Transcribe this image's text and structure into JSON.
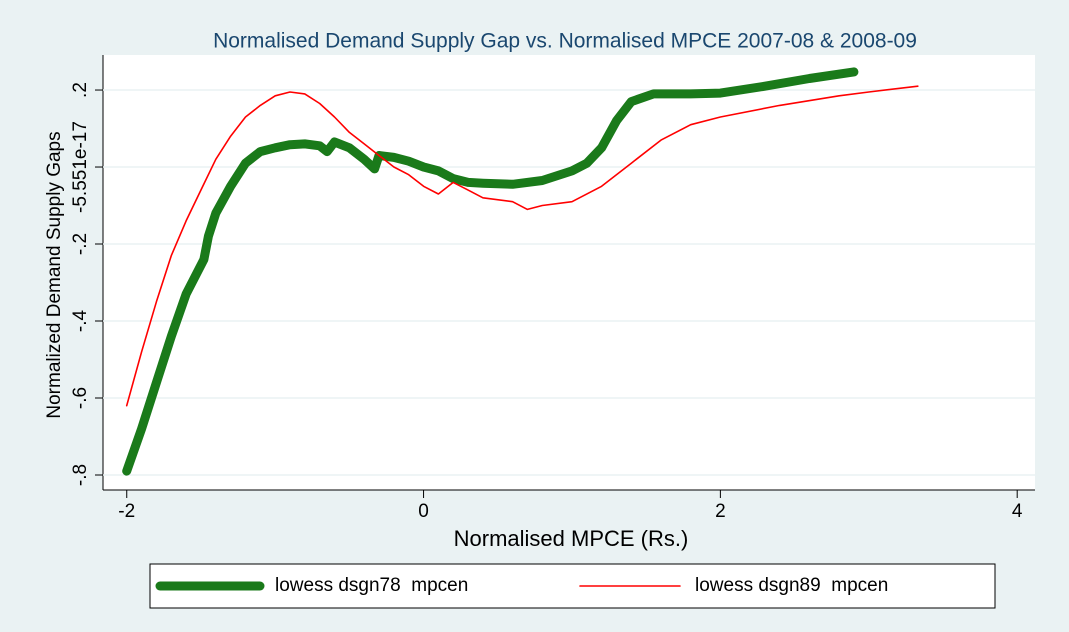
{
  "chart_data": {
    "type": "line",
    "title": "Normalised Demand Supply Gap vs. Normalised MPCE 2007-08 & 2008-09",
    "x_label": "Normalised MPCE (Rs.)",
    "y_label": "Normalized Demand Supply Gaps",
    "xlim": [
      -2.16,
      4.12
    ],
    "ylim": [
      -0.839,
      0.291
    ],
    "xticks": [
      -2,
      0,
      2,
      4
    ],
    "yticks": [
      {
        "value": -0.8,
        "label": "-.8"
      },
      {
        "value": -0.6,
        "label": "-.6"
      },
      {
        "value": -0.4,
        "label": "-.4"
      },
      {
        "value": -0.2,
        "label": "-.2"
      },
      {
        "value": -5.551e-17,
        "label": "-5.551e-17"
      },
      {
        "value": 0.2,
        "label": ".2"
      }
    ],
    "grid": true,
    "legend": "bottom",
    "series": [
      {
        "name": "lowess dsgn78  mpcen",
        "color": "#1a7a1a",
        "x": [
          -2,
          -1.9,
          -1.8,
          -1.7,
          -1.6,
          -1.48,
          -1.45,
          -1.4,
          -1.3,
          -1.2,
          -1.1,
          -1.0,
          -0.9,
          -0.8,
          -0.7,
          -0.65,
          -0.6,
          -0.5,
          -0.4,
          -0.33,
          -0.3,
          -0.2,
          -0.1,
          0,
          0.1,
          0.2,
          0.3,
          0.4,
          0.6,
          0.8,
          1.0,
          1.1,
          1.2,
          1.3,
          1.4,
          1.55,
          1.8,
          2.0,
          2.3,
          2.6,
          2.9
        ],
        "values": [
          -0.79,
          -0.68,
          -0.56,
          -0.44,
          -0.33,
          -0.24,
          -0.18,
          -0.12,
          -0.05,
          0.01,
          0.04,
          0.05,
          0.058,
          0.06,
          0.055,
          0.04,
          0.065,
          0.05,
          0.02,
          -0.005,
          0.03,
          0.025,
          0.015,
          0.0,
          -0.01,
          -0.03,
          -0.04,
          -0.042,
          -0.045,
          -0.035,
          -0.01,
          0.01,
          0.05,
          0.12,
          0.17,
          0.19,
          0.19,
          0.192,
          0.21,
          0.23,
          0.247
        ]
      },
      {
        "name": "lowess dsgn89  mpcen",
        "color": "#ff0000",
        "x": [
          -2,
          -1.9,
          -1.8,
          -1.7,
          -1.6,
          -1.5,
          -1.4,
          -1.3,
          -1.2,
          -1.1,
          -1.0,
          -0.9,
          -0.8,
          -0.7,
          -0.6,
          -0.5,
          -0.4,
          -0.3,
          -0.2,
          -0.1,
          0,
          0.1,
          0.2,
          0.3,
          0.4,
          0.6,
          0.7,
          0.8,
          1.0,
          1.2,
          1.4,
          1.6,
          1.8,
          2.0,
          2.4,
          2.8,
          3.0,
          3.33
        ],
        "values": [
          -0.62,
          -0.48,
          -0.35,
          -0.23,
          -0.14,
          -0.06,
          0.02,
          0.08,
          0.13,
          0.16,
          0.185,
          0.195,
          0.19,
          0.165,
          0.13,
          0.09,
          0.06,
          0.03,
          0.0,
          -0.02,
          -0.05,
          -0.07,
          -0.04,
          -0.06,
          -0.08,
          -0.09,
          -0.11,
          -0.1,
          -0.09,
          -0.05,
          0.01,
          0.07,
          0.11,
          0.13,
          0.16,
          0.185,
          0.195,
          0.21
        ]
      }
    ]
  }
}
